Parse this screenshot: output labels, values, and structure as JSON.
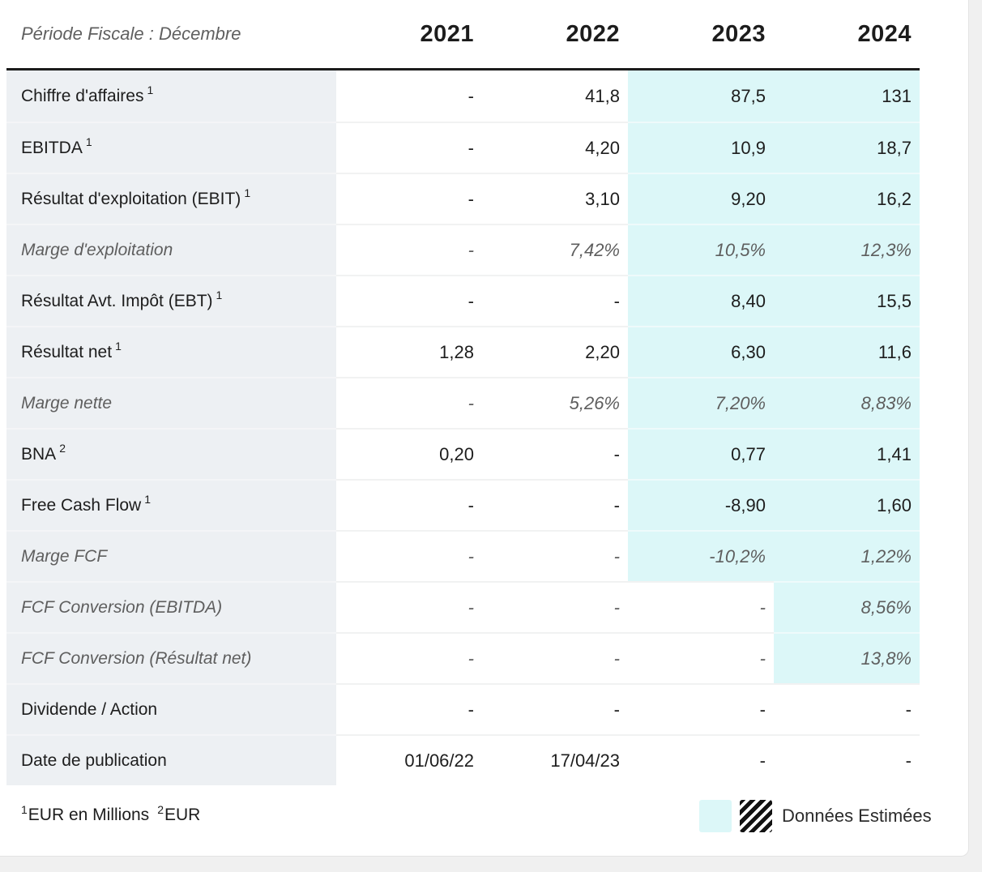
{
  "colors": {
    "page_bg": "#f0f0f0",
    "card_bg": "#ffffff",
    "estimate_bg": "#dcf7f8",
    "label_col_bg": "#edf0f3",
    "header_border": "#1c1c1c"
  },
  "table": {
    "header": {
      "period_label": "Période Fiscale : Décembre",
      "years": [
        "2021",
        "2022",
        "2023",
        "2024"
      ]
    },
    "rows": [
      {
        "label": "Chiffre d'affaires",
        "sup": "1",
        "italic": false,
        "values": [
          "-",
          "41,8",
          "87,5",
          "131"
        ],
        "highlight": [
          false,
          false,
          true,
          true
        ]
      },
      {
        "label": "EBITDA",
        "sup": "1",
        "italic": false,
        "values": [
          "-",
          "4,20",
          "10,9",
          "18,7"
        ],
        "highlight": [
          false,
          false,
          true,
          true
        ]
      },
      {
        "label": "Résultat d'exploitation (EBIT)",
        "sup": "1",
        "italic": false,
        "values": [
          "-",
          "3,10",
          "9,20",
          "16,2"
        ],
        "highlight": [
          false,
          false,
          true,
          true
        ]
      },
      {
        "label": "Marge d'exploitation",
        "sup": "",
        "italic": true,
        "values": [
          "-",
          "7,42%",
          "10,5%",
          "12,3%"
        ],
        "highlight": [
          false,
          false,
          true,
          true
        ]
      },
      {
        "label": "Résultat Avt. Impôt (EBT)",
        "sup": "1",
        "italic": false,
        "values": [
          "-",
          "-",
          "8,40",
          "15,5"
        ],
        "highlight": [
          false,
          false,
          true,
          true
        ]
      },
      {
        "label": "Résultat net",
        "sup": "1",
        "italic": false,
        "values": [
          "1,28",
          "2,20",
          "6,30",
          "11,6"
        ],
        "highlight": [
          false,
          false,
          true,
          true
        ]
      },
      {
        "label": "Marge nette",
        "sup": "",
        "italic": true,
        "values": [
          "-",
          "5,26%",
          "7,20%",
          "8,83%"
        ],
        "highlight": [
          false,
          false,
          true,
          true
        ]
      },
      {
        "label": "BNA",
        "sup": "2",
        "italic": false,
        "values": [
          "0,20",
          "-",
          "0,77",
          "1,41"
        ],
        "highlight": [
          false,
          false,
          true,
          true
        ]
      },
      {
        "label": "Free Cash Flow",
        "sup": "1",
        "italic": false,
        "values": [
          "-",
          "-",
          "-8,90",
          "1,60"
        ],
        "highlight": [
          false,
          false,
          true,
          true
        ]
      },
      {
        "label": "Marge FCF",
        "sup": "",
        "italic": true,
        "values": [
          "-",
          "-",
          "-10,2%",
          "1,22%"
        ],
        "highlight": [
          false,
          false,
          true,
          true
        ]
      },
      {
        "label": "FCF Conversion (EBITDA)",
        "sup": "",
        "italic": true,
        "values": [
          "-",
          "-",
          "-",
          "8,56%"
        ],
        "highlight": [
          false,
          false,
          false,
          true
        ]
      },
      {
        "label": "FCF Conversion (Résultat net)",
        "sup": "",
        "italic": true,
        "values": [
          "-",
          "-",
          "-",
          "13,8%"
        ],
        "highlight": [
          false,
          false,
          false,
          true
        ]
      },
      {
        "label": "Dividende / Action",
        "sup": "",
        "italic": false,
        "values": [
          "-",
          "-",
          "-",
          "-"
        ],
        "highlight": [
          false,
          false,
          false,
          false
        ]
      },
      {
        "label": "Date de publication",
        "sup": "",
        "italic": false,
        "values": [
          "01/06/22",
          "17/04/23",
          "-",
          "-"
        ],
        "highlight": [
          false,
          false,
          false,
          false
        ]
      }
    ],
    "footnotes": [
      {
        "sup": "1",
        "text": "EUR en Millions"
      },
      {
        "sup": "2",
        "text": "EUR"
      }
    ],
    "legend": {
      "estimated_label": "Données Estimées"
    }
  }
}
